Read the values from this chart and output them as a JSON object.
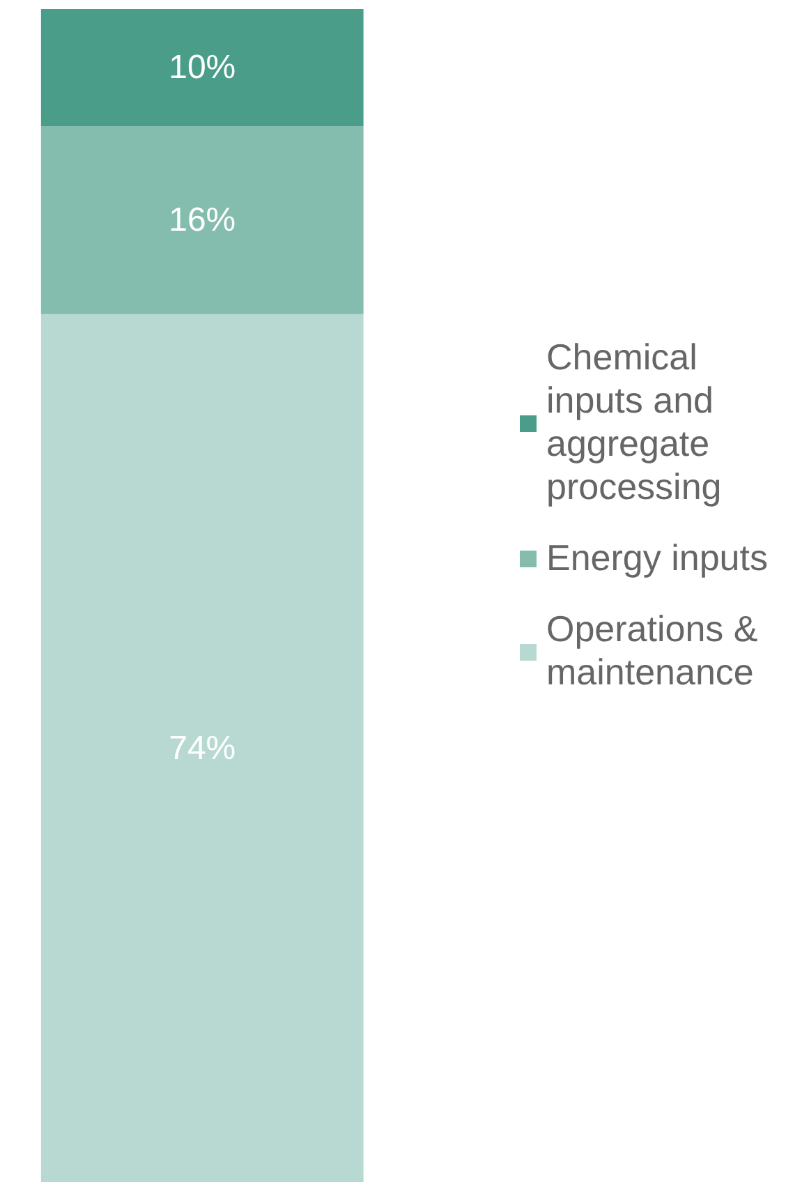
{
  "chart_data": {
    "type": "bar",
    "stacked": true,
    "categories": [
      null
    ],
    "series": [
      {
        "name": "Operations & maintenance",
        "color": "#b8d9d2",
        "values": [
          74
        ],
        "value_labels": [
          "74%"
        ]
      },
      {
        "name": "Energy inputs",
        "color": "#84bdad",
        "values": [
          16
        ],
        "value_labels": [
          "16%"
        ]
      },
      {
        "name": "Chemical inputs and aggregate processing",
        "color": "#4a9e89",
        "values": [
          10
        ],
        "value_labels": [
          "10%"
        ]
      }
    ],
    "tick_labels": false,
    "legend": "right"
  }
}
